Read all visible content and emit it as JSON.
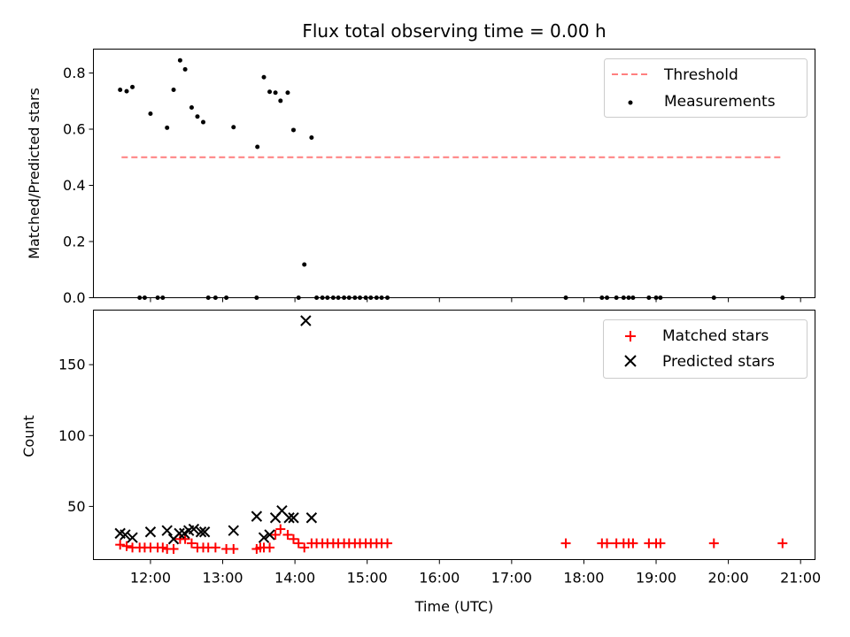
{
  "chart_data": [
    {
      "type": "scatter",
      "title": "Flux total observing time = 0.00 h",
      "xlabel": "",
      "ylabel": "Matched/Predicted stars",
      "xlim": [
        11.21,
        21.2
      ],
      "ylim": [
        0.0,
        0.885
      ],
      "yticks": [
        0.0,
        0.2,
        0.4,
        0.6,
        0.8
      ],
      "ytick_labels": [
        "0.0",
        "0.2",
        "0.4",
        "0.6",
        "0.8"
      ],
      "legend_position": "upper right",
      "series": [
        {
          "name": "Threshold",
          "kind": "dashed-line",
          "color": "#ff7f7f",
          "x": [
            11.6,
            20.75
          ],
          "y": [
            0.5,
            0.5
          ]
        },
        {
          "name": "Measurements",
          "kind": "dots",
          "color": "#000000",
          "x": [
            11.58,
            11.67,
            11.75,
            11.85,
            11.92,
            12.0,
            12.1,
            12.17,
            12.23,
            12.32,
            12.41,
            12.48,
            12.57,
            12.65,
            12.73,
            12.8,
            12.9,
            13.05,
            13.15,
            13.47,
            13.48,
            13.57,
            13.65,
            13.73,
            13.8,
            13.9,
            13.98,
            14.05,
            14.13,
            14.23,
            14.3,
            14.38,
            14.45,
            14.53,
            14.6,
            14.68,
            14.75,
            14.83,
            14.9,
            14.98,
            15.05,
            15.13,
            15.2,
            15.28,
            17.75,
            18.25,
            18.32,
            18.45,
            18.55,
            18.62,
            18.68,
            18.9,
            19.0,
            19.06,
            19.8,
            20.75
          ],
          "y": [
            0.74,
            0.735,
            0.75,
            0.0,
            0.0,
            0.655,
            0.0,
            0.0,
            0.605,
            0.74,
            0.845,
            0.813,
            0.677,
            0.645,
            0.625,
            0.0,
            0.0,
            0.0,
            0.607,
            0.0,
            0.537,
            0.785,
            0.733,
            0.73,
            0.701,
            0.73,
            0.597,
            0.0,
            0.118,
            0.57,
            0.0,
            0.0,
            0.0,
            0.0,
            0.0,
            0.0,
            0.0,
            0.0,
            0.0,
            0.0,
            0.0,
            0.0,
            0.0,
            0.0,
            0.0,
            0.0,
            0.0,
            0.0,
            0.0,
            0.0,
            0.0,
            0.0,
            0.0,
            0.0,
            0.0,
            0.0
          ]
        }
      ]
    },
    {
      "type": "scatter",
      "title": "",
      "xlabel": "Time (UTC)",
      "ylabel": "Count",
      "xlim": [
        11.21,
        21.2
      ],
      "ylim": [
        12.5,
        188.5
      ],
      "yticks": [
        50,
        100,
        150
      ],
      "ytick_labels": [
        "50",
        "100",
        "150"
      ],
      "xticks": [
        12,
        13,
        14,
        15,
        16,
        17,
        18,
        19,
        20,
        21
      ],
      "xtick_labels": [
        "12:00",
        "13:00",
        "14:00",
        "15:00",
        "16:00",
        "17:00",
        "18:00",
        "19:00",
        "20:00",
        "21:00"
      ],
      "legend_position": "upper right",
      "series": [
        {
          "name": "Matched stars",
          "marker": "plus",
          "color": "#ff0000",
          "x": [
            11.58,
            11.67,
            11.75,
            11.85,
            11.92,
            12.0,
            12.1,
            12.17,
            12.23,
            12.32,
            12.41,
            12.48,
            12.57,
            12.65,
            12.73,
            12.8,
            12.9,
            13.05,
            13.15,
            13.47,
            13.52,
            13.57,
            13.65,
            13.73,
            13.8,
            13.9,
            13.98,
            14.05,
            14.13,
            14.23,
            14.3,
            14.38,
            14.45,
            14.53,
            14.6,
            14.68,
            14.75,
            14.83,
            14.9,
            14.98,
            15.05,
            15.13,
            15.2,
            15.28,
            17.75,
            18.25,
            18.32,
            18.45,
            18.55,
            18.62,
            18.68,
            18.9,
            19.0,
            19.06,
            19.8,
            20.75
          ],
          "y": [
            23,
            22,
            21,
            21,
            21,
            21,
            21,
            21,
            20,
            20,
            27,
            27,
            24,
            21,
            21,
            21,
            21,
            20,
            20,
            20,
            21,
            21,
            21,
            30,
            34,
            30,
            27,
            24,
            21,
            24,
            24,
            24,
            24,
            24,
            24,
            24,
            24,
            24,
            24,
            24,
            24,
            24,
            24,
            24,
            24,
            24,
            24,
            24,
            24,
            24,
            24,
            24,
            24,
            24,
            24,
            24
          ]
        },
        {
          "name": "Predicted stars",
          "marker": "x",
          "color": "#000000",
          "x": [
            11.58,
            11.65,
            11.75,
            12.0,
            12.23,
            12.32,
            12.4,
            12.47,
            12.53,
            12.6,
            12.7,
            12.75,
            13.15,
            13.47,
            13.57,
            13.65,
            13.73,
            13.82,
            13.92,
            13.98,
            14.15,
            14.23
          ],
          "y": [
            31,
            30,
            28,
            32,
            33,
            27,
            31,
            31,
            33,
            34,
            32,
            32,
            33,
            43,
            28,
            30,
            42,
            47,
            42,
            42,
            181,
            42
          ]
        }
      ]
    }
  ]
}
